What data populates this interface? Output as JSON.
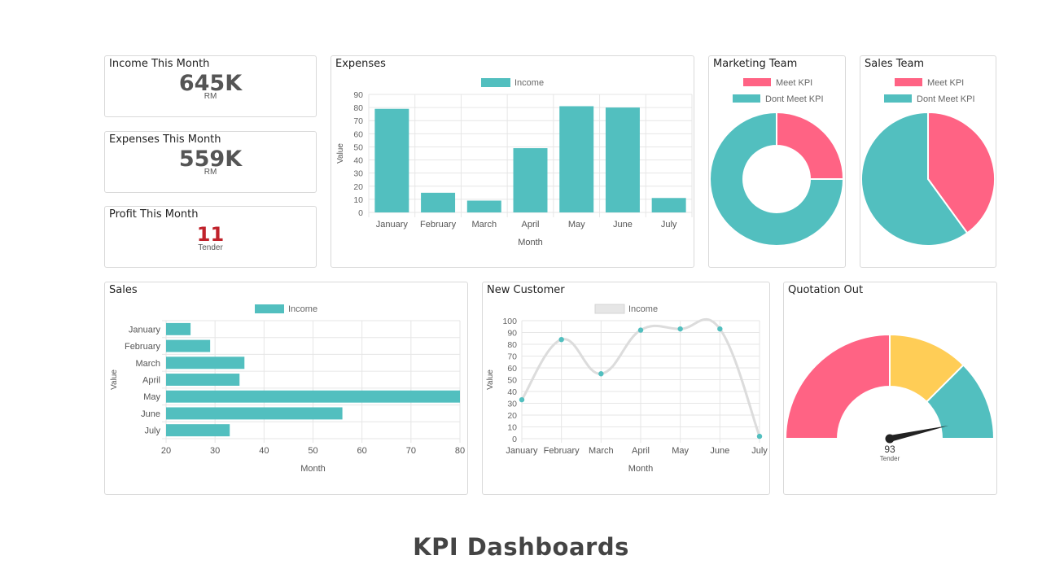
{
  "kpi": {
    "income": {
      "title": "Income This Month",
      "value": "645K",
      "unit": "RM"
    },
    "expenses": {
      "title": "Expenses This Month",
      "value": "559K",
      "unit": "RM"
    },
    "profit": {
      "title": "Profit This Month",
      "value": "11",
      "unit": "Tender"
    }
  },
  "colors": {
    "teal": "#52bfbf",
    "pink": "#ff6384",
    "yellow": "#ffcd56",
    "grey": "#dddddd",
    "profit": "#c0222b"
  },
  "footer": {
    "title": "KPI Dashboards"
  },
  "chart_data": [
    {
      "id": "expenses",
      "title": "Expenses",
      "type": "bar",
      "legend": [
        "Income"
      ],
      "categories": [
        "January",
        "February",
        "March",
        "April",
        "May",
        "June",
        "July"
      ],
      "values": [
        79,
        15,
        9,
        49,
        81,
        80,
        11
      ],
      "xlabel": "Month",
      "ylabel": "Value",
      "ylim": [
        0,
        90
      ],
      "yticks": [
        0,
        10,
        20,
        30,
        40,
        50,
        60,
        70,
        80,
        90
      ],
      "grid": true
    },
    {
      "id": "marketing",
      "title": "Marketing Team",
      "type": "pie",
      "donut": true,
      "labels": [
        "Meet KPI",
        "Dont Meet KPI"
      ],
      "values": [
        25,
        75
      ]
    },
    {
      "id": "salesteam",
      "title": "Sales Team",
      "type": "pie",
      "donut": false,
      "labels": [
        "Meet KPI",
        "Dont Meet KPI"
      ],
      "values": [
        40,
        60
      ]
    },
    {
      "id": "sales",
      "title": "Sales",
      "type": "bar",
      "orientation": "horizontal",
      "legend": [
        "Income"
      ],
      "categories": [
        "January",
        "February",
        "March",
        "April",
        "May",
        "June",
        "July"
      ],
      "values": [
        25,
        29,
        36,
        35,
        80,
        56,
        33
      ],
      "xlabel": "Month",
      "ylabel": "Value",
      "xlim": [
        20,
        80
      ],
      "xticks": [
        20,
        30,
        40,
        50,
        60,
        70,
        80
      ],
      "grid": true
    },
    {
      "id": "newcustomer",
      "title": "New Customer",
      "type": "line",
      "legend": [
        "Income"
      ],
      "categories": [
        "January",
        "February",
        "March",
        "April",
        "May",
        "June",
        "July"
      ],
      "values": [
        33,
        84,
        55,
        92,
        93,
        93,
        2
      ],
      "xlabel": "Month",
      "ylabel": "Value",
      "ylim": [
        0,
        100
      ],
      "yticks": [
        0,
        10,
        20,
        30,
        40,
        50,
        60,
        70,
        80,
        90,
        100
      ],
      "grid": true
    },
    {
      "id": "quotation",
      "title": "Quotation Out",
      "type": "gauge",
      "value": 93,
      "value_label": "93",
      "unit": "Tender",
      "segments": [
        50,
        25,
        25
      ]
    }
  ]
}
